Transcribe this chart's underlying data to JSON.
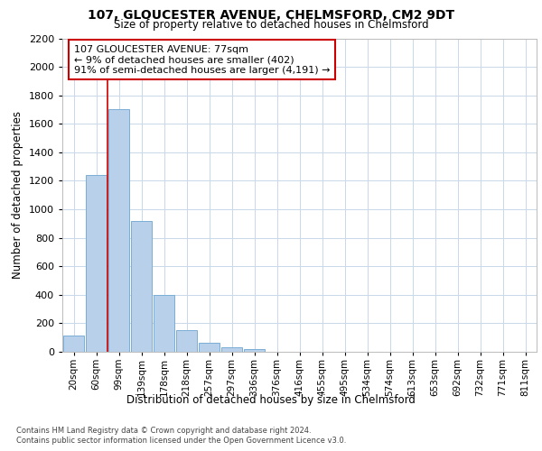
{
  "title": "107, GLOUCESTER AVENUE, CHELMSFORD, CM2 9DT",
  "subtitle": "Size of property relative to detached houses in Chelmsford",
  "xlabel": "Distribution of detached houses by size in Chelmsford",
  "ylabel": "Number of detached properties",
  "categories": [
    "20sqm",
    "60sqm",
    "99sqm",
    "139sqm",
    "178sqm",
    "218sqm",
    "257sqm",
    "297sqm",
    "336sqm",
    "376sqm",
    "416sqm",
    "455sqm",
    "495sqm",
    "534sqm",
    "574sqm",
    "613sqm",
    "653sqm",
    "692sqm",
    "732sqm",
    "771sqm",
    "811sqm"
  ],
  "values": [
    115,
    1240,
    1700,
    920,
    400,
    150,
    65,
    30,
    20,
    0,
    0,
    0,
    0,
    0,
    0,
    0,
    0,
    0,
    0,
    0,
    0
  ],
  "bar_color": "#b8d0ea",
  "bar_edge_color": "#7aaed6",
  "background_color": "#ffffff",
  "grid_color": "#c8d8ea",
  "vline_x": 1.5,
  "vline_color": "#cc0000",
  "annotation_text": "107 GLOUCESTER AVENUE: 77sqm\n← 9% of detached houses are smaller (402)\n91% of semi-detached houses are larger (4,191) →",
  "annotation_box_color": "#ffffff",
  "annotation_box_edgecolor": "#cc0000",
  "ylim": [
    0,
    2200
  ],
  "yticks": [
    0,
    200,
    400,
    600,
    800,
    1000,
    1200,
    1400,
    1600,
    1800,
    2000,
    2200
  ],
  "footer_line1": "Contains HM Land Registry data © Crown copyright and database right 2024.",
  "footer_line2": "Contains public sector information licensed under the Open Government Licence v3.0."
}
